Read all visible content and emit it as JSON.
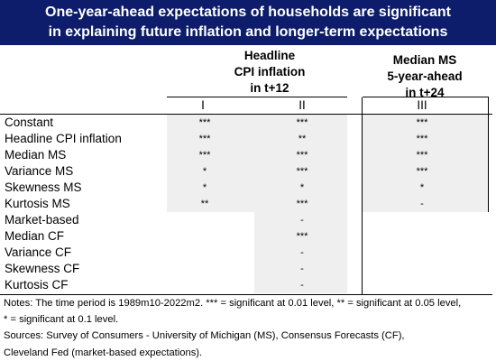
{
  "title": {
    "line1": "One-year-ahead expectations of households are significant",
    "line2": "in explaining future inflation and longer-term expectations"
  },
  "headers": {
    "group1": [
      "Headline",
      "CPI inflation",
      "in t+12"
    ],
    "group2": [
      "Median MS",
      "5-year-ahead",
      "in t+24"
    ],
    "columns": [
      "I",
      "II",
      "III"
    ]
  },
  "rows": [
    {
      "label": "Constant",
      "I": "***",
      "II": "***",
      "III": "***"
    },
    {
      "label": "Headline CPI inflation",
      "I": "***",
      "II": "**",
      "III": "***"
    },
    {
      "label": "Median MS",
      "I": "***",
      "II": "***",
      "III": "***"
    },
    {
      "label": "Variance MS",
      "I": "*",
      "II": "***",
      "III": "***"
    },
    {
      "label": "Skewness MS",
      "I": "*",
      "II": "*",
      "III": "*"
    },
    {
      "label": "Kurtosis MS",
      "I": "**",
      "II": "***",
      "III": "-"
    },
    {
      "label": "Market-based",
      "I": "",
      "II": "-",
      "III": ""
    },
    {
      "label": "Median CF",
      "I": "",
      "II": "***",
      "III": ""
    },
    {
      "label": "Variance CF",
      "I": "",
      "II": "-",
      "III": ""
    },
    {
      "label": "Skewness CF",
      "I": "",
      "II": "-",
      "III": ""
    },
    {
      "label": "Kurtosis CF",
      "I": "",
      "II": "-",
      "III": ""
    }
  ],
  "notes": [
    "Notes: The time period is 1989m10-2022m2. *** = significant at 0.01 level,  ** = significant at 0.05 level,",
    "* = significant at 0.1 level.",
    "Sources: Survey of Consumers - University of Michigan (MS), Consensus Forecasts (CF),",
    "Cleveland Fed (market-based expectations)."
  ]
}
